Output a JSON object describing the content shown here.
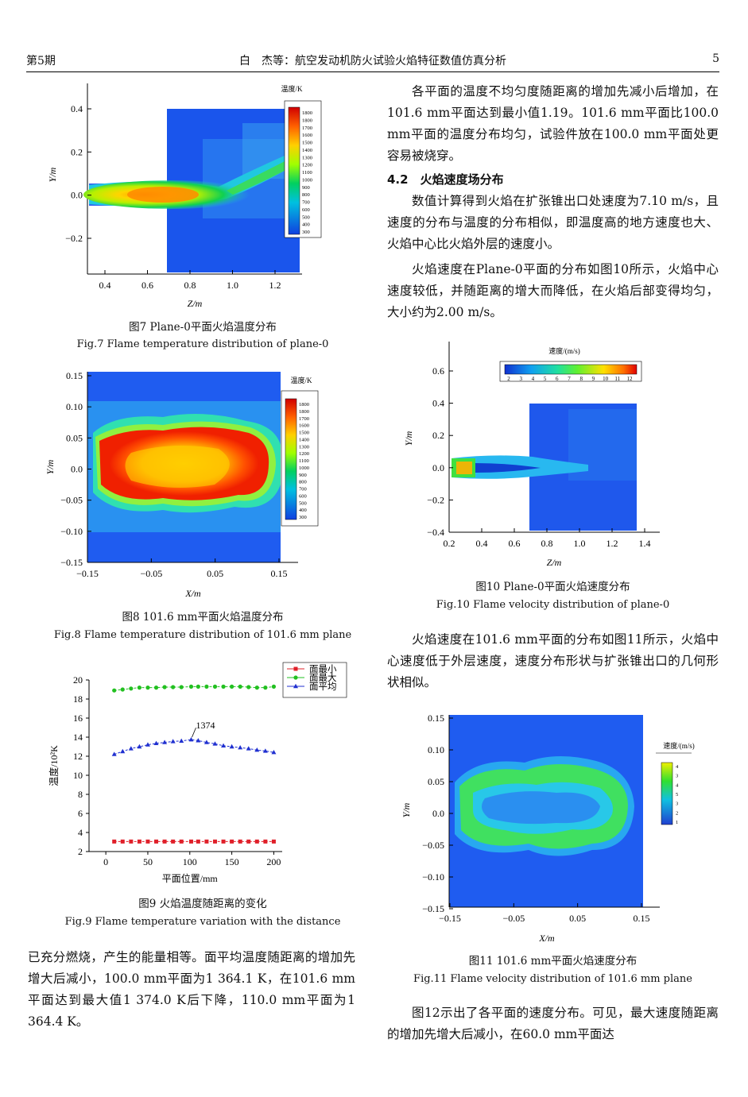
{
  "header": {
    "left": "第5期",
    "center": "白　杰等：航空发动机防火试验火焰特征数值仿真分析",
    "right": "5"
  },
  "right_col": {
    "p1": "各平面的温度不均匀度随距离的增加先减小后增加，在101.6 mm平面达到最小值1.19。101.6 mm平面比100.0 mm平面的温度分布均匀，试验件放在100.0 mm平面处更容易被烧穿。",
    "section": "4.2　火焰速度场分布",
    "p2": "数值计算得到火焰在扩张锥出口处速度为7.10 m/s，且速度的分布与温度的分布相似，即温度高的地方速度也大、火焰中心比火焰外层的速度小。",
    "p3": "火焰速度在Plane-0平面的分布如图10所示，火焰中心速度较低，并随距离的增大而降低，在火焰后部变得均匀，大小约为2.00 m/s。",
    "p4": "火焰速度在101.6 mm平面的分布如图11所示，火焰中心速度低于外层速度，速度分布形状与扩张锥出口的几何形状相似。",
    "p5": "图12示出了各平面的速度分布。可见，最大速度随距离的增加先增大后减小，在60.0 mm平面达"
  },
  "left_col": {
    "p1": "已充分燃烧，产生的能量相等。面平均温度随距离的增加先增大后减小，100.0 mm平面为1 364.1 K，在101.6 mm平面达到最大值1 374.0 K后下降，110.0 mm平面为1 364.4 K。"
  },
  "fig7": {
    "cap_cn": "图7  Plane-0平面火焰温度分布",
    "cap_en": "Fig.7  Flame temperature distribution of plane-0",
    "legend_title": "温度/K",
    "legend_ticks": [
      "1800",
      "1800",
      "1700",
      "1600",
      "1500",
      "1400",
      "1300",
      "1200",
      "1100",
      "1000",
      "900",
      "800",
      "700",
      "600",
      "500",
      "400",
      "300"
    ],
    "ylabel": "Y/m",
    "xlabel": "Z/m",
    "yticks": [
      "0.4",
      "0.2",
      "0.0",
      "−0.2"
    ],
    "xticks": [
      "0.4",
      "0.6",
      "0.8",
      "1.0",
      "1.2"
    ]
  },
  "fig8": {
    "cap_cn": "图8  101.6 mm平面火焰温度分布",
    "cap_en": "Fig.8  Flame temperature distribution of 101.6 mm plane",
    "legend_title": "温度/K",
    "legend_ticks": [
      "1800",
      "1800",
      "1700",
      "1600",
      "1500",
      "1400",
      "1300",
      "1200",
      "1100",
      "1000",
      "900",
      "800",
      "700",
      "600",
      "500",
      "400",
      "300"
    ],
    "ylabel": "Y/m",
    "xlabel": "X/m",
    "yticks": [
      "0.15",
      "0.10",
      "0.05",
      "0.0",
      "−0.05",
      "−0.10",
      "−0.15"
    ],
    "xticks": [
      "−0.15",
      "−0.05",
      "0.05",
      "0.15"
    ]
  },
  "fig10": {
    "cap_cn": "图10  Plane-0平面火焰速度分布",
    "cap_en": "Fig.10  Flame velocity distribution of plane-0",
    "legend_title": "速度/(m/s)",
    "legend_ticks": [
      "2",
      "3",
      "4",
      "5",
      "6",
      "7",
      "8",
      "9",
      "10",
      "11",
      "12"
    ],
    "ylabel": "Y/m",
    "xlabel": "Z/m",
    "yticks": [
      "0.6",
      "0.4",
      "0.2",
      "0.0",
      "−0.2",
      "−0.4"
    ],
    "xticks": [
      "0.2",
      "0.4",
      "0.6",
      "0.8",
      "1.0",
      "1.2",
      "1.4"
    ]
  },
  "fig11": {
    "cap_cn": "图11  101.6 mm平面火焰速度分布",
    "cap_en": "Fig.11  Flame velocity distribution of 101.6 mm plane",
    "legend_title": "速度/(m/s)",
    "legend_ticks": [
      "4",
      "3",
      "4",
      "5",
      "3",
      "2",
      "1"
    ],
    "ylabel": "Y/m",
    "xlabel": "X/m",
    "yticks": [
      "0.15",
      "0.10",
      "0.05",
      "0.0",
      "−0.05",
      "−0.10",
      "−0.15"
    ],
    "xticks": [
      "−0.15",
      "−0.05",
      "0.05",
      "0.15"
    ]
  },
  "fig9": {
    "cap_cn": "图9  火焰温度随距离的变化",
    "cap_en": "Fig.9  Flame temperature variation with the distance",
    "ylabel": "温度/10²K",
    "xlabel": "平面位置/mm",
    "annotation": "1374"
  },
  "chart_data": {
    "type": "line",
    "title": "",
    "xlabel": "平面位置/mm",
    "ylabel": "温度/10²K",
    "xlim": [
      -20,
      210
    ],
    "ylim": [
      2,
      20
    ],
    "xticks": [
      0,
      50,
      100,
      150,
      200
    ],
    "yticks": [
      2,
      4,
      6,
      8,
      10,
      12,
      14,
      16,
      18,
      20
    ],
    "legend_position": "top-right",
    "x": [
      10,
      20,
      30,
      40,
      50,
      60,
      70,
      80,
      90,
      101.6,
      110,
      120,
      130,
      140,
      150,
      160,
      170,
      180,
      190,
      200
    ],
    "series": [
      {
        "name": "面最小",
        "color": "#e0202a",
        "marker": "square",
        "values": [
          3.05,
          3.05,
          3.05,
          3.05,
          3.05,
          3.05,
          3.05,
          3.05,
          3.05,
          3.05,
          3.05,
          3.05,
          3.05,
          3.05,
          3.05,
          3.05,
          3.05,
          3.05,
          3.05,
          3.05
        ]
      },
      {
        "name": "面最大",
        "color": "#22c020",
        "marker": "circle",
        "values": [
          18.9,
          19.0,
          19.1,
          19.2,
          19.2,
          19.2,
          19.25,
          19.25,
          19.25,
          19.3,
          19.3,
          19.3,
          19.3,
          19.3,
          19.3,
          19.3,
          19.25,
          19.2,
          19.2,
          19.3
        ]
      },
      {
        "name": "面平均",
        "color": "#2030d0",
        "marker": "triangle",
        "values": [
          12.2,
          12.5,
          12.8,
          13.0,
          13.2,
          13.35,
          13.45,
          13.55,
          13.6,
          13.74,
          13.64,
          13.45,
          13.3,
          13.1,
          13.0,
          12.9,
          12.8,
          12.65,
          12.55,
          12.4
        ]
      }
    ]
  }
}
